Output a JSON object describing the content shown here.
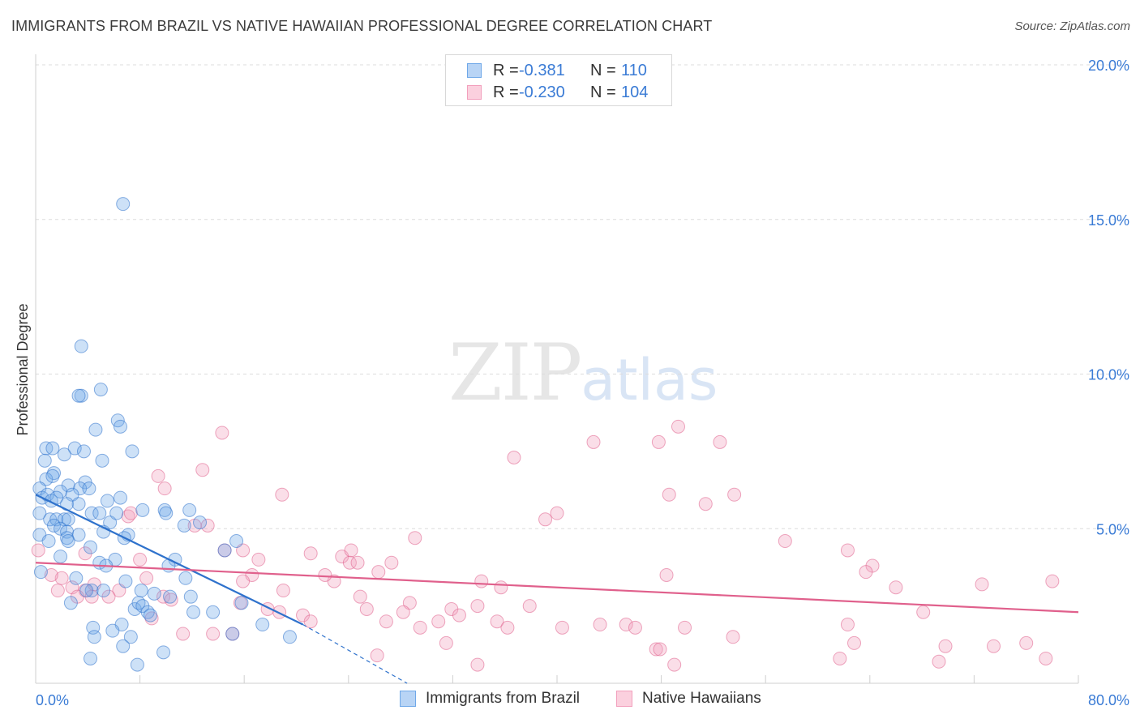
{
  "header": {
    "title": "IMMIGRANTS FROM BRAZIL VS NATIVE HAWAIIAN PROFESSIONAL DEGREE CORRELATION CHART",
    "source": "Source: ZipAtlas.com"
  },
  "watermark": {
    "zip": "ZIP",
    "atlas": "atlas"
  },
  "legend": {
    "rows": [
      {
        "r_label": "R =",
        "r_value": "-0.381",
        "n_label": "N =",
        "n_value": "110"
      },
      {
        "r_label": "R =",
        "r_value": "-0.230",
        "n_label": "N =",
        "n_value": "104"
      }
    ]
  },
  "chart_data": {
    "type": "scatter",
    "title": "IMMIGRANTS FROM BRAZIL VS NATIVE HAWAIIAN PROFESSIONAL DEGREE CORRELATION CHART",
    "xlabel": "",
    "ylabel": "Professional Degree",
    "xlim": [
      0,
      80
    ],
    "ylim": [
      0,
      20
    ],
    "x_tick_labels": [
      "0.0%",
      "80.0%"
    ],
    "y_tick_labels": [
      "5.0%",
      "10.0%",
      "15.0%",
      "20.0%"
    ],
    "y_ticks": [
      5,
      10,
      15,
      20
    ],
    "grid": true,
    "colors": {
      "brazil": "#6fa8e8",
      "brazil_line": "#2f72cc",
      "hawaiian": "#f2a0bd",
      "hawaiian_line": "#e0608c",
      "tick": "#3a7bd5"
    },
    "series": [
      {
        "name": "Immigrants from Brazil",
        "trend": {
          "x0": 0,
          "y0": 6.1,
          "x1": 20.5,
          "y1": 1.9,
          "dash_to_x": 28.5,
          "dash_to_y": 0
        },
        "points": [
          [
            6.7,
            15.5
          ],
          [
            3.5,
            10.9
          ],
          [
            3.5,
            9.3
          ],
          [
            3.3,
            9.3
          ],
          [
            5.0,
            9.5
          ],
          [
            6.3,
            8.5
          ],
          [
            6.5,
            8.3
          ],
          [
            4.6,
            8.2
          ],
          [
            0.8,
            7.6
          ],
          [
            1.3,
            7.6
          ],
          [
            2.2,
            7.4
          ],
          [
            3.0,
            7.6
          ],
          [
            3.7,
            7.5
          ],
          [
            7.4,
            7.5
          ],
          [
            5.1,
            7.2
          ],
          [
            0.7,
            7.2
          ],
          [
            1.4,
            6.8
          ],
          [
            0.8,
            6.6
          ],
          [
            1.3,
            6.7
          ],
          [
            2.5,
            6.4
          ],
          [
            3.8,
            6.5
          ],
          [
            3.4,
            6.3
          ],
          [
            2.8,
            6.1
          ],
          [
            0.3,
            6.3
          ],
          [
            0.5,
            6.0
          ],
          [
            0.9,
            6.1
          ],
          [
            1.2,
            5.9
          ],
          [
            1.9,
            6.2
          ],
          [
            1.6,
            6.0
          ],
          [
            2.4,
            5.8
          ],
          [
            3.3,
            5.8
          ],
          [
            4.1,
            6.3
          ],
          [
            6.5,
            6.0
          ],
          [
            5.5,
            5.9
          ],
          [
            4.3,
            5.5
          ],
          [
            4.9,
            5.5
          ],
          [
            0.3,
            5.5
          ],
          [
            1.1,
            5.3
          ],
          [
            1.6,
            5.3
          ],
          [
            2.2,
            5.3
          ],
          [
            2.5,
            5.3
          ],
          [
            1.4,
            5.1
          ],
          [
            1.9,
            5.0
          ],
          [
            2.4,
            4.9
          ],
          [
            5.2,
            4.9
          ],
          [
            5.7,
            5.2
          ],
          [
            6.2,
            5.5
          ],
          [
            8.2,
            5.6
          ],
          [
            9.9,
            5.6
          ],
          [
            10.0,
            5.5
          ],
          [
            11.8,
            5.6
          ],
          [
            12.6,
            5.2
          ],
          [
            11.4,
            5.1
          ],
          [
            7.1,
            4.8
          ],
          [
            6.8,
            4.7
          ],
          [
            3.3,
            4.8
          ],
          [
            2.4,
            4.7
          ],
          [
            2.5,
            4.6
          ],
          [
            0.3,
            4.8
          ],
          [
            1.0,
            4.6
          ],
          [
            15.4,
            4.6
          ],
          [
            14.5,
            4.3
          ],
          [
            4.2,
            4.4
          ],
          [
            1.9,
            4.1
          ],
          [
            6.1,
            4.0
          ],
          [
            4.9,
            3.9
          ],
          [
            5.4,
            3.8
          ],
          [
            10.7,
            4.0
          ],
          [
            10.2,
            3.8
          ],
          [
            11.5,
            3.4
          ],
          [
            0.4,
            3.6
          ],
          [
            3.1,
            3.4
          ],
          [
            6.9,
            3.3
          ],
          [
            4.3,
            3.0
          ],
          [
            5.2,
            3.0
          ],
          [
            3.9,
            3.0
          ],
          [
            8.1,
            3.0
          ],
          [
            9.1,
            2.9
          ],
          [
            10.3,
            2.8
          ],
          [
            11.9,
            2.8
          ],
          [
            2.7,
            2.6
          ],
          [
            7.6,
            2.4
          ],
          [
            7.9,
            2.6
          ],
          [
            8.2,
            2.5
          ],
          [
            8.6,
            2.3
          ],
          [
            8.8,
            2.2
          ],
          [
            12.1,
            2.3
          ],
          [
            13.6,
            2.3
          ],
          [
            15.8,
            2.6
          ],
          [
            6.6,
            1.9
          ],
          [
            4.4,
            1.8
          ],
          [
            5.9,
            1.7
          ],
          [
            7.3,
            1.5
          ],
          [
            17.4,
            1.9
          ],
          [
            15.1,
            1.6
          ],
          [
            19.5,
            1.5
          ],
          [
            4.5,
            1.5
          ],
          [
            6.7,
            1.2
          ],
          [
            4.2,
            0.8
          ],
          [
            9.8,
            1.0
          ],
          [
            7.8,
            0.6
          ]
        ]
      },
      {
        "name": "Native Hawaiians",
        "trend": {
          "x0": 0,
          "y0": 3.9,
          "x1": 80,
          "y1": 2.3
        },
        "points": [
          [
            14.3,
            8.1
          ],
          [
            47.8,
            7.8
          ],
          [
            49.3,
            8.3
          ],
          [
            42.8,
            7.8
          ],
          [
            52.5,
            7.8
          ],
          [
            36.7,
            7.3
          ],
          [
            12.8,
            6.9
          ],
          [
            9.4,
            6.7
          ],
          [
            9.9,
            6.3
          ],
          [
            18.9,
            6.1
          ],
          [
            48.6,
            6.1
          ],
          [
            53.6,
            6.1
          ],
          [
            51.4,
            5.8
          ],
          [
            40.0,
            5.5
          ],
          [
            39.1,
            5.3
          ],
          [
            7.1,
            5.4
          ],
          [
            7.3,
            5.5
          ],
          [
            12.2,
            5.1
          ],
          [
            13.2,
            5.1
          ],
          [
            29.1,
            4.7
          ],
          [
            57.5,
            4.6
          ],
          [
            15.9,
            4.3
          ],
          [
            14.5,
            4.3
          ],
          [
            21.1,
            4.2
          ],
          [
            23.5,
            4.1
          ],
          [
            24.2,
            4.3
          ],
          [
            17.1,
            4.0
          ],
          [
            24.1,
            3.9
          ],
          [
            24.7,
            3.9
          ],
          [
            27.3,
            3.9
          ],
          [
            8.0,
            4.0
          ],
          [
            3.8,
            4.2
          ],
          [
            0.2,
            4.3
          ],
          [
            62.3,
            4.3
          ],
          [
            64.2,
            3.8
          ],
          [
            63.7,
            3.6
          ],
          [
            72.6,
            3.2
          ],
          [
            78.0,
            3.3
          ],
          [
            66.0,
            3.1
          ],
          [
            48.4,
            3.5
          ],
          [
            34.2,
            3.3
          ],
          [
            35.7,
            3.1
          ],
          [
            26.3,
            3.6
          ],
          [
            22.9,
            3.3
          ],
          [
            22.2,
            3.5
          ],
          [
            16.6,
            3.5
          ],
          [
            15.9,
            3.3
          ],
          [
            19.0,
            3.0
          ],
          [
            8.5,
            3.4
          ],
          [
            2.0,
            3.4
          ],
          [
            1.2,
            3.5
          ],
          [
            1.7,
            3.0
          ],
          [
            2.8,
            3.1
          ],
          [
            3.8,
            3.0
          ],
          [
            4.5,
            3.2
          ],
          [
            6.4,
            3.0
          ],
          [
            3.2,
            2.8
          ],
          [
            4.3,
            2.8
          ],
          [
            5.6,
            2.8
          ],
          [
            9.8,
            2.8
          ],
          [
            10.4,
            2.7
          ],
          [
            8.9,
            2.1
          ],
          [
            15.7,
            2.6
          ],
          [
            17.8,
            2.4
          ],
          [
            18.7,
            2.3
          ],
          [
            20.5,
            2.2
          ],
          [
            21.1,
            2.0
          ],
          [
            24.9,
            2.8
          ],
          [
            25.4,
            2.4
          ],
          [
            28.7,
            2.6
          ],
          [
            28.2,
            2.3
          ],
          [
            26.9,
            2.0
          ],
          [
            29.5,
            1.8
          ],
          [
            30.9,
            2.0
          ],
          [
            31.9,
            2.4
          ],
          [
            32.5,
            2.2
          ],
          [
            33.9,
            2.5
          ],
          [
            35.4,
            2.0
          ],
          [
            36.2,
            1.8
          ],
          [
            37.9,
            2.5
          ],
          [
            40.4,
            1.8
          ],
          [
            43.3,
            1.9
          ],
          [
            45.3,
            1.9
          ],
          [
            46.0,
            1.8
          ],
          [
            47.6,
            1.1
          ],
          [
            47.9,
            1.1
          ],
          [
            49.8,
            1.8
          ],
          [
            53.5,
            1.5
          ],
          [
            62.3,
            1.9
          ],
          [
            62.8,
            1.3
          ],
          [
            68.1,
            2.3
          ],
          [
            69.8,
            1.2
          ],
          [
            69.3,
            0.7
          ],
          [
            73.5,
            1.2
          ],
          [
            76.0,
            1.3
          ],
          [
            77.5,
            0.8
          ],
          [
            13.6,
            1.6
          ],
          [
            11.3,
            1.6
          ],
          [
            15.1,
            1.6
          ],
          [
            26.2,
            0.9
          ],
          [
            31.5,
            1.3
          ],
          [
            33.9,
            0.6
          ],
          [
            49.0,
            0.6
          ],
          [
            61.7,
            0.8
          ]
        ]
      }
    ]
  },
  "bottom_legend": {
    "items": [
      {
        "label": "Immigrants from Brazil"
      },
      {
        "label": "Native Hawaiians"
      }
    ]
  }
}
